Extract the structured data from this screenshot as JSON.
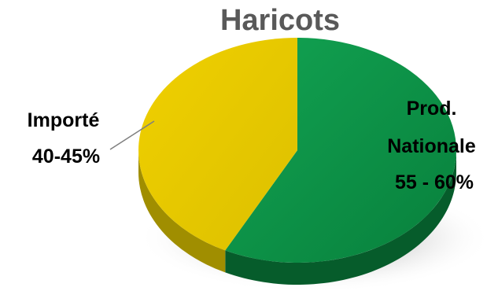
{
  "chart_data": {
    "type": "pie",
    "title": "Haricots",
    "slices": [
      {
        "key": "national",
        "label_lines": [
          "Prod.",
          "Nationale",
          "55 - 60%"
        ],
        "value": 57.5,
        "range": "55 - 60%",
        "color": "#0a8a42",
        "side_color": "#065c2b"
      },
      {
        "key": "imported",
        "label_lines": [
          "Importé",
          "40-45%"
        ],
        "value": 42.5,
        "range": "40-45%",
        "color": "#e8cc00",
        "side_color": "#a08e00"
      }
    ],
    "style": "3d",
    "legend": "none"
  }
}
